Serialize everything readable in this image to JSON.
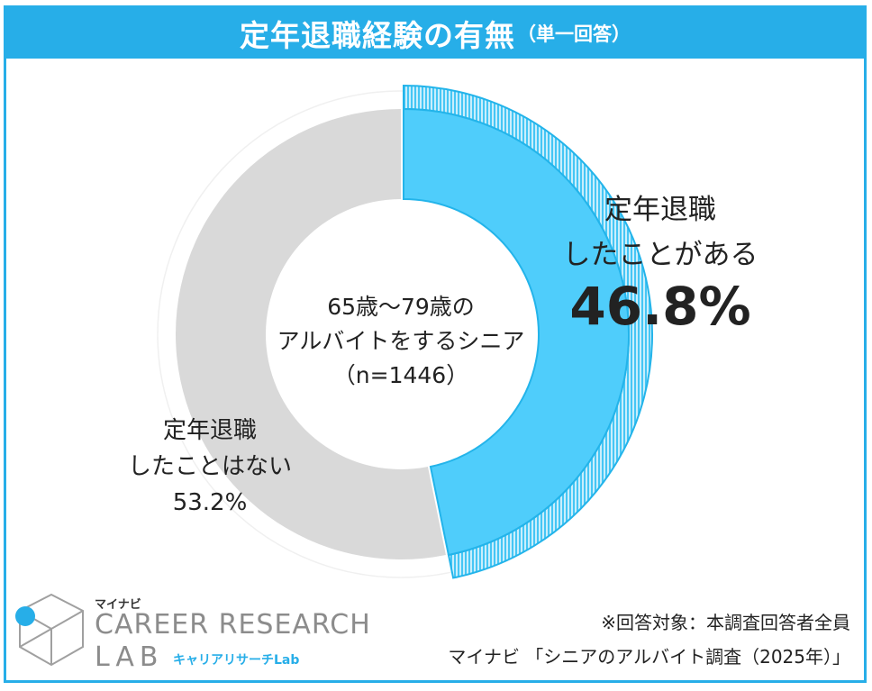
{
  "title": {
    "main": "定年退職経験の有無",
    "sub": "（単一回答）"
  },
  "center_label": {
    "line1": "65歳～79歳の",
    "line2": "アルバイトをするシニア",
    "line3": "（n=1446）"
  },
  "chart_data": {
    "type": "pie",
    "variant": "donut",
    "categories": [
      "定年退職したことがある",
      "定年退職したことはない"
    ],
    "values": [
      46.8,
      53.2
    ],
    "unit": "%",
    "colors": {
      "yes": "#4fcdfb",
      "yes_outline": "#23b4ea",
      "no": "#d9d9d9",
      "highlight_band": "#7ed6f7"
    },
    "labels": {
      "yes": {
        "line1": "定年退職",
        "line2": "したことがある",
        "value": "46.8%"
      },
      "no": {
        "line1": "定年退職",
        "line2": "したことはない",
        "value": "53.2%"
      }
    }
  },
  "notes": {
    "line1": "※回答対象：本調査回答者全員",
    "line2": "マイナビ 「シニアのアルバイト調査（2025年）」"
  },
  "logo": {
    "brand": "マイナビ",
    "line1": "CAREER RESEARCH",
    "line2": "LAB",
    "kana": "キャリアリサーチLab",
    "accent": "#27aee8"
  }
}
